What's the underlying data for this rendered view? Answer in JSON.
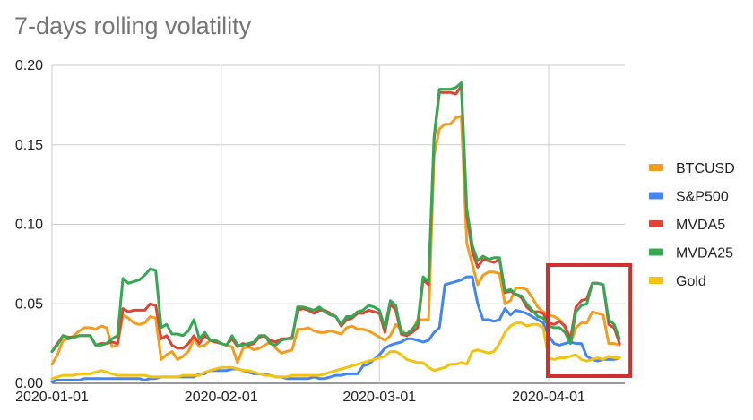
{
  "chart_data": {
    "type": "line",
    "title": "7-days rolling volatility",
    "xlabel": "",
    "ylabel": "",
    "x_ticks": [
      "2020-01-01",
      "2020-02-01",
      "2020-03-01",
      "2020-04-01"
    ],
    "y_ticks": [
      "0.00",
      "0.05",
      "0.10",
      "0.15",
      "0.20"
    ],
    "xlim": [
      "2020-01-01",
      "2020-04-14"
    ],
    "ylim": [
      0,
      0.2
    ],
    "grid": true,
    "legend_position": "right",
    "highlight_box": {
      "x_range": [
        "2020-04-01",
        "2020-04-14"
      ],
      "color": "#d32f2f"
    },
    "x": [
      "2020-01-01",
      "2020-01-02",
      "2020-01-03",
      "2020-01-04",
      "2020-01-05",
      "2020-01-06",
      "2020-01-07",
      "2020-01-08",
      "2020-01-09",
      "2020-01-10",
      "2020-01-11",
      "2020-01-12",
      "2020-01-13",
      "2020-01-14",
      "2020-01-15",
      "2020-01-16",
      "2020-01-17",
      "2020-01-18",
      "2020-01-19",
      "2020-01-20",
      "2020-01-21",
      "2020-01-22",
      "2020-01-23",
      "2020-01-24",
      "2020-01-25",
      "2020-01-26",
      "2020-01-27",
      "2020-01-28",
      "2020-01-29",
      "2020-01-30",
      "2020-01-31",
      "2020-02-01",
      "2020-02-02",
      "2020-02-03",
      "2020-02-04",
      "2020-02-05",
      "2020-02-06",
      "2020-02-07",
      "2020-02-08",
      "2020-02-09",
      "2020-02-10",
      "2020-02-11",
      "2020-02-12",
      "2020-02-13",
      "2020-02-14",
      "2020-02-15",
      "2020-02-16",
      "2020-02-17",
      "2020-02-18",
      "2020-02-19",
      "2020-02-20",
      "2020-02-21",
      "2020-02-22",
      "2020-02-23",
      "2020-02-24",
      "2020-02-25",
      "2020-02-26",
      "2020-02-27",
      "2020-02-28",
      "2020-02-29",
      "2020-03-01",
      "2020-03-02",
      "2020-03-03",
      "2020-03-04",
      "2020-03-05",
      "2020-03-06",
      "2020-03-07",
      "2020-03-08",
      "2020-03-09",
      "2020-03-10",
      "2020-03-11",
      "2020-03-12",
      "2020-03-13",
      "2020-03-14",
      "2020-03-15",
      "2020-03-16",
      "2020-03-17",
      "2020-03-18",
      "2020-03-19",
      "2020-03-20",
      "2020-03-21",
      "2020-03-22",
      "2020-03-23",
      "2020-03-24",
      "2020-03-25",
      "2020-03-26",
      "2020-03-27",
      "2020-03-28",
      "2020-03-29",
      "2020-03-30",
      "2020-03-31",
      "2020-04-01",
      "2020-04-02",
      "2020-04-03",
      "2020-04-04",
      "2020-04-05",
      "2020-04-06",
      "2020-04-07",
      "2020-04-08",
      "2020-04-09",
      "2020-04-10",
      "2020-04-11",
      "2020-04-12",
      "2020-04-13",
      "2020-04-14"
    ],
    "series": [
      {
        "name": "BTCUSD",
        "color": "#F59C1A",
        "values": [
          0.012,
          0.018,
          0.027,
          0.028,
          0.03,
          0.033,
          0.035,
          0.035,
          0.034,
          0.036,
          0.035,
          0.023,
          0.024,
          0.043,
          0.041,
          0.038,
          0.037,
          0.038,
          0.042,
          0.041,
          0.015,
          0.018,
          0.02,
          0.015,
          0.017,
          0.02,
          0.028,
          0.023,
          0.024,
          0.027,
          0.026,
          0.025,
          0.024,
          0.023,
          0.013,
          0.022,
          0.023,
          0.021,
          0.022,
          0.024,
          0.026,
          0.022,
          0.019,
          0.02,
          0.021,
          0.034,
          0.034,
          0.035,
          0.033,
          0.032,
          0.032,
          0.033,
          0.032,
          0.031,
          0.035,
          0.036,
          0.034,
          0.034,
          0.033,
          0.031,
          0.029,
          0.027,
          0.03,
          0.037,
          0.034,
          0.03,
          0.033,
          0.04,
          0.04,
          0.04,
          0.143,
          0.16,
          0.163,
          0.163,
          0.167,
          0.168,
          0.088,
          0.075,
          0.062,
          0.068,
          0.07,
          0.07,
          0.069,
          0.05,
          0.052,
          0.06,
          0.06,
          0.059,
          0.054,
          0.048,
          0.045,
          0.043,
          0.042,
          0.04,
          0.035,
          0.025,
          0.035,
          0.038,
          0.038,
          0.045,
          0.044,
          0.043,
          0.025,
          0.025,
          0.024
        ]
      },
      {
        "name": "S&P500",
        "color": "#4285F4",
        "values": [
          0.001,
          0.002,
          0.002,
          0.002,
          0.002,
          0.002,
          0.003,
          0.003,
          0.003,
          0.003,
          0.003,
          0.003,
          0.003,
          0.003,
          0.003,
          0.003,
          0.003,
          0.002,
          0.003,
          0.003,
          0.004,
          0.004,
          0.004,
          0.004,
          0.004,
          0.004,
          0.004,
          0.006,
          0.006,
          0.008,
          0.008,
          0.008,
          0.008,
          0.009,
          0.009,
          0.008,
          0.007,
          0.006,
          0.006,
          0.006,
          0.005,
          0.004,
          0.004,
          0.003,
          0.003,
          0.003,
          0.003,
          0.003,
          0.004,
          0.003,
          0.003,
          0.004,
          0.005,
          0.005,
          0.006,
          0.006,
          0.006,
          0.011,
          0.012,
          0.015,
          0.018,
          0.022,
          0.024,
          0.025,
          0.026,
          0.028,
          0.028,
          0.027,
          0.026,
          0.027,
          0.032,
          0.035,
          0.062,
          0.063,
          0.064,
          0.065,
          0.067,
          0.067,
          0.05,
          0.04,
          0.04,
          0.039,
          0.04,
          0.047,
          0.043,
          0.046,
          0.045,
          0.044,
          0.042,
          0.04,
          0.038,
          0.03,
          0.025,
          0.024,
          0.025,
          0.026,
          0.025,
          0.025,
          0.017,
          0.015,
          0.014,
          0.015,
          0.015,
          0.015,
          0.016
        ]
      },
      {
        "name": "MVDA5",
        "color": "#DB4437",
        "values": [
          0.02,
          0.025,
          0.03,
          0.029,
          0.029,
          0.03,
          0.03,
          0.03,
          0.024,
          0.025,
          0.025,
          0.026,
          0.025,
          0.047,
          0.045,
          0.046,
          0.046,
          0.046,
          0.05,
          0.049,
          0.028,
          0.03,
          0.024,
          0.022,
          0.022,
          0.025,
          0.03,
          0.025,
          0.03,
          0.027,
          0.026,
          0.025,
          0.024,
          0.028,
          0.023,
          0.025,
          0.024,
          0.025,
          0.029,
          0.03,
          0.027,
          0.026,
          0.028,
          0.028,
          0.029,
          0.046,
          0.047,
          0.046,
          0.044,
          0.046,
          0.046,
          0.044,
          0.042,
          0.036,
          0.04,
          0.041,
          0.044,
          0.044,
          0.046,
          0.045,
          0.044,
          0.032,
          0.05,
          0.046,
          0.031,
          0.03,
          0.032,
          0.035,
          0.065,
          0.062,
          0.153,
          0.183,
          0.183,
          0.183,
          0.182,
          0.187,
          0.106,
          0.083,
          0.073,
          0.078,
          0.077,
          0.076,
          0.078,
          0.057,
          0.058,
          0.056,
          0.054,
          0.048,
          0.045,
          0.045,
          0.044,
          0.038,
          0.037,
          0.039,
          0.036,
          0.028,
          0.048,
          0.052,
          0.053,
          0.063,
          0.063,
          0.062,
          0.037,
          0.035,
          0.025
        ]
      },
      {
        "name": "MVDA25",
        "color": "#34A853",
        "values": [
          0.02,
          0.024,
          0.03,
          0.028,
          0.029,
          0.03,
          0.03,
          0.03,
          0.024,
          0.024,
          0.025,
          0.028,
          0.03,
          0.066,
          0.063,
          0.064,
          0.065,
          0.068,
          0.072,
          0.071,
          0.035,
          0.037,
          0.031,
          0.031,
          0.03,
          0.033,
          0.04,
          0.028,
          0.032,
          0.027,
          0.027,
          0.025,
          0.024,
          0.03,
          0.024,
          0.024,
          0.025,
          0.026,
          0.03,
          0.03,
          0.025,
          0.024,
          0.027,
          0.028,
          0.028,
          0.048,
          0.048,
          0.047,
          0.046,
          0.048,
          0.045,
          0.043,
          0.042,
          0.037,
          0.042,
          0.042,
          0.045,
          0.046,
          0.049,
          0.048,
          0.046,
          0.035,
          0.052,
          0.049,
          0.032,
          0.031,
          0.034,
          0.038,
          0.067,
          0.064,
          0.155,
          0.185,
          0.185,
          0.185,
          0.186,
          0.189,
          0.11,
          0.087,
          0.077,
          0.08,
          0.078,
          0.079,
          0.079,
          0.058,
          0.059,
          0.056,
          0.055,
          0.05,
          0.046,
          0.042,
          0.041,
          0.036,
          0.035,
          0.035,
          0.032,
          0.025,
          0.045,
          0.049,
          0.05,
          0.063,
          0.063,
          0.062,
          0.04,
          0.037,
          0.028
        ]
      },
      {
        "name": "Gold",
        "color": "#F4C20D",
        "values": [
          0.003,
          0.004,
          0.005,
          0.005,
          0.005,
          0.006,
          0.006,
          0.006,
          0.007,
          0.008,
          0.007,
          0.006,
          0.005,
          0.005,
          0.005,
          0.005,
          0.005,
          0.005,
          0.004,
          0.004,
          0.004,
          0.004,
          0.004,
          0.004,
          0.005,
          0.005,
          0.005,
          0.005,
          0.007,
          0.008,
          0.009,
          0.01,
          0.01,
          0.01,
          0.009,
          0.008,
          0.008,
          0.007,
          0.006,
          0.005,
          0.005,
          0.004,
          0.004,
          0.004,
          0.005,
          0.005,
          0.005,
          0.005,
          0.005,
          0.005,
          0.006,
          0.007,
          0.008,
          0.009,
          0.01,
          0.011,
          0.012,
          0.013,
          0.014,
          0.015,
          0.016,
          0.017,
          0.02,
          0.02,
          0.018,
          0.015,
          0.014,
          0.013,
          0.013,
          0.01,
          0.008,
          0.009,
          0.01,
          0.012,
          0.012,
          0.013,
          0.012,
          0.02,
          0.021,
          0.02,
          0.019,
          0.02,
          0.025,
          0.032,
          0.036,
          0.038,
          0.038,
          0.036,
          0.037,
          0.037,
          0.035,
          0.016,
          0.015,
          0.016,
          0.016,
          0.017,
          0.018,
          0.015,
          0.014,
          0.015,
          0.016,
          0.015,
          0.017,
          0.016,
          0.016
        ]
      }
    ]
  }
}
